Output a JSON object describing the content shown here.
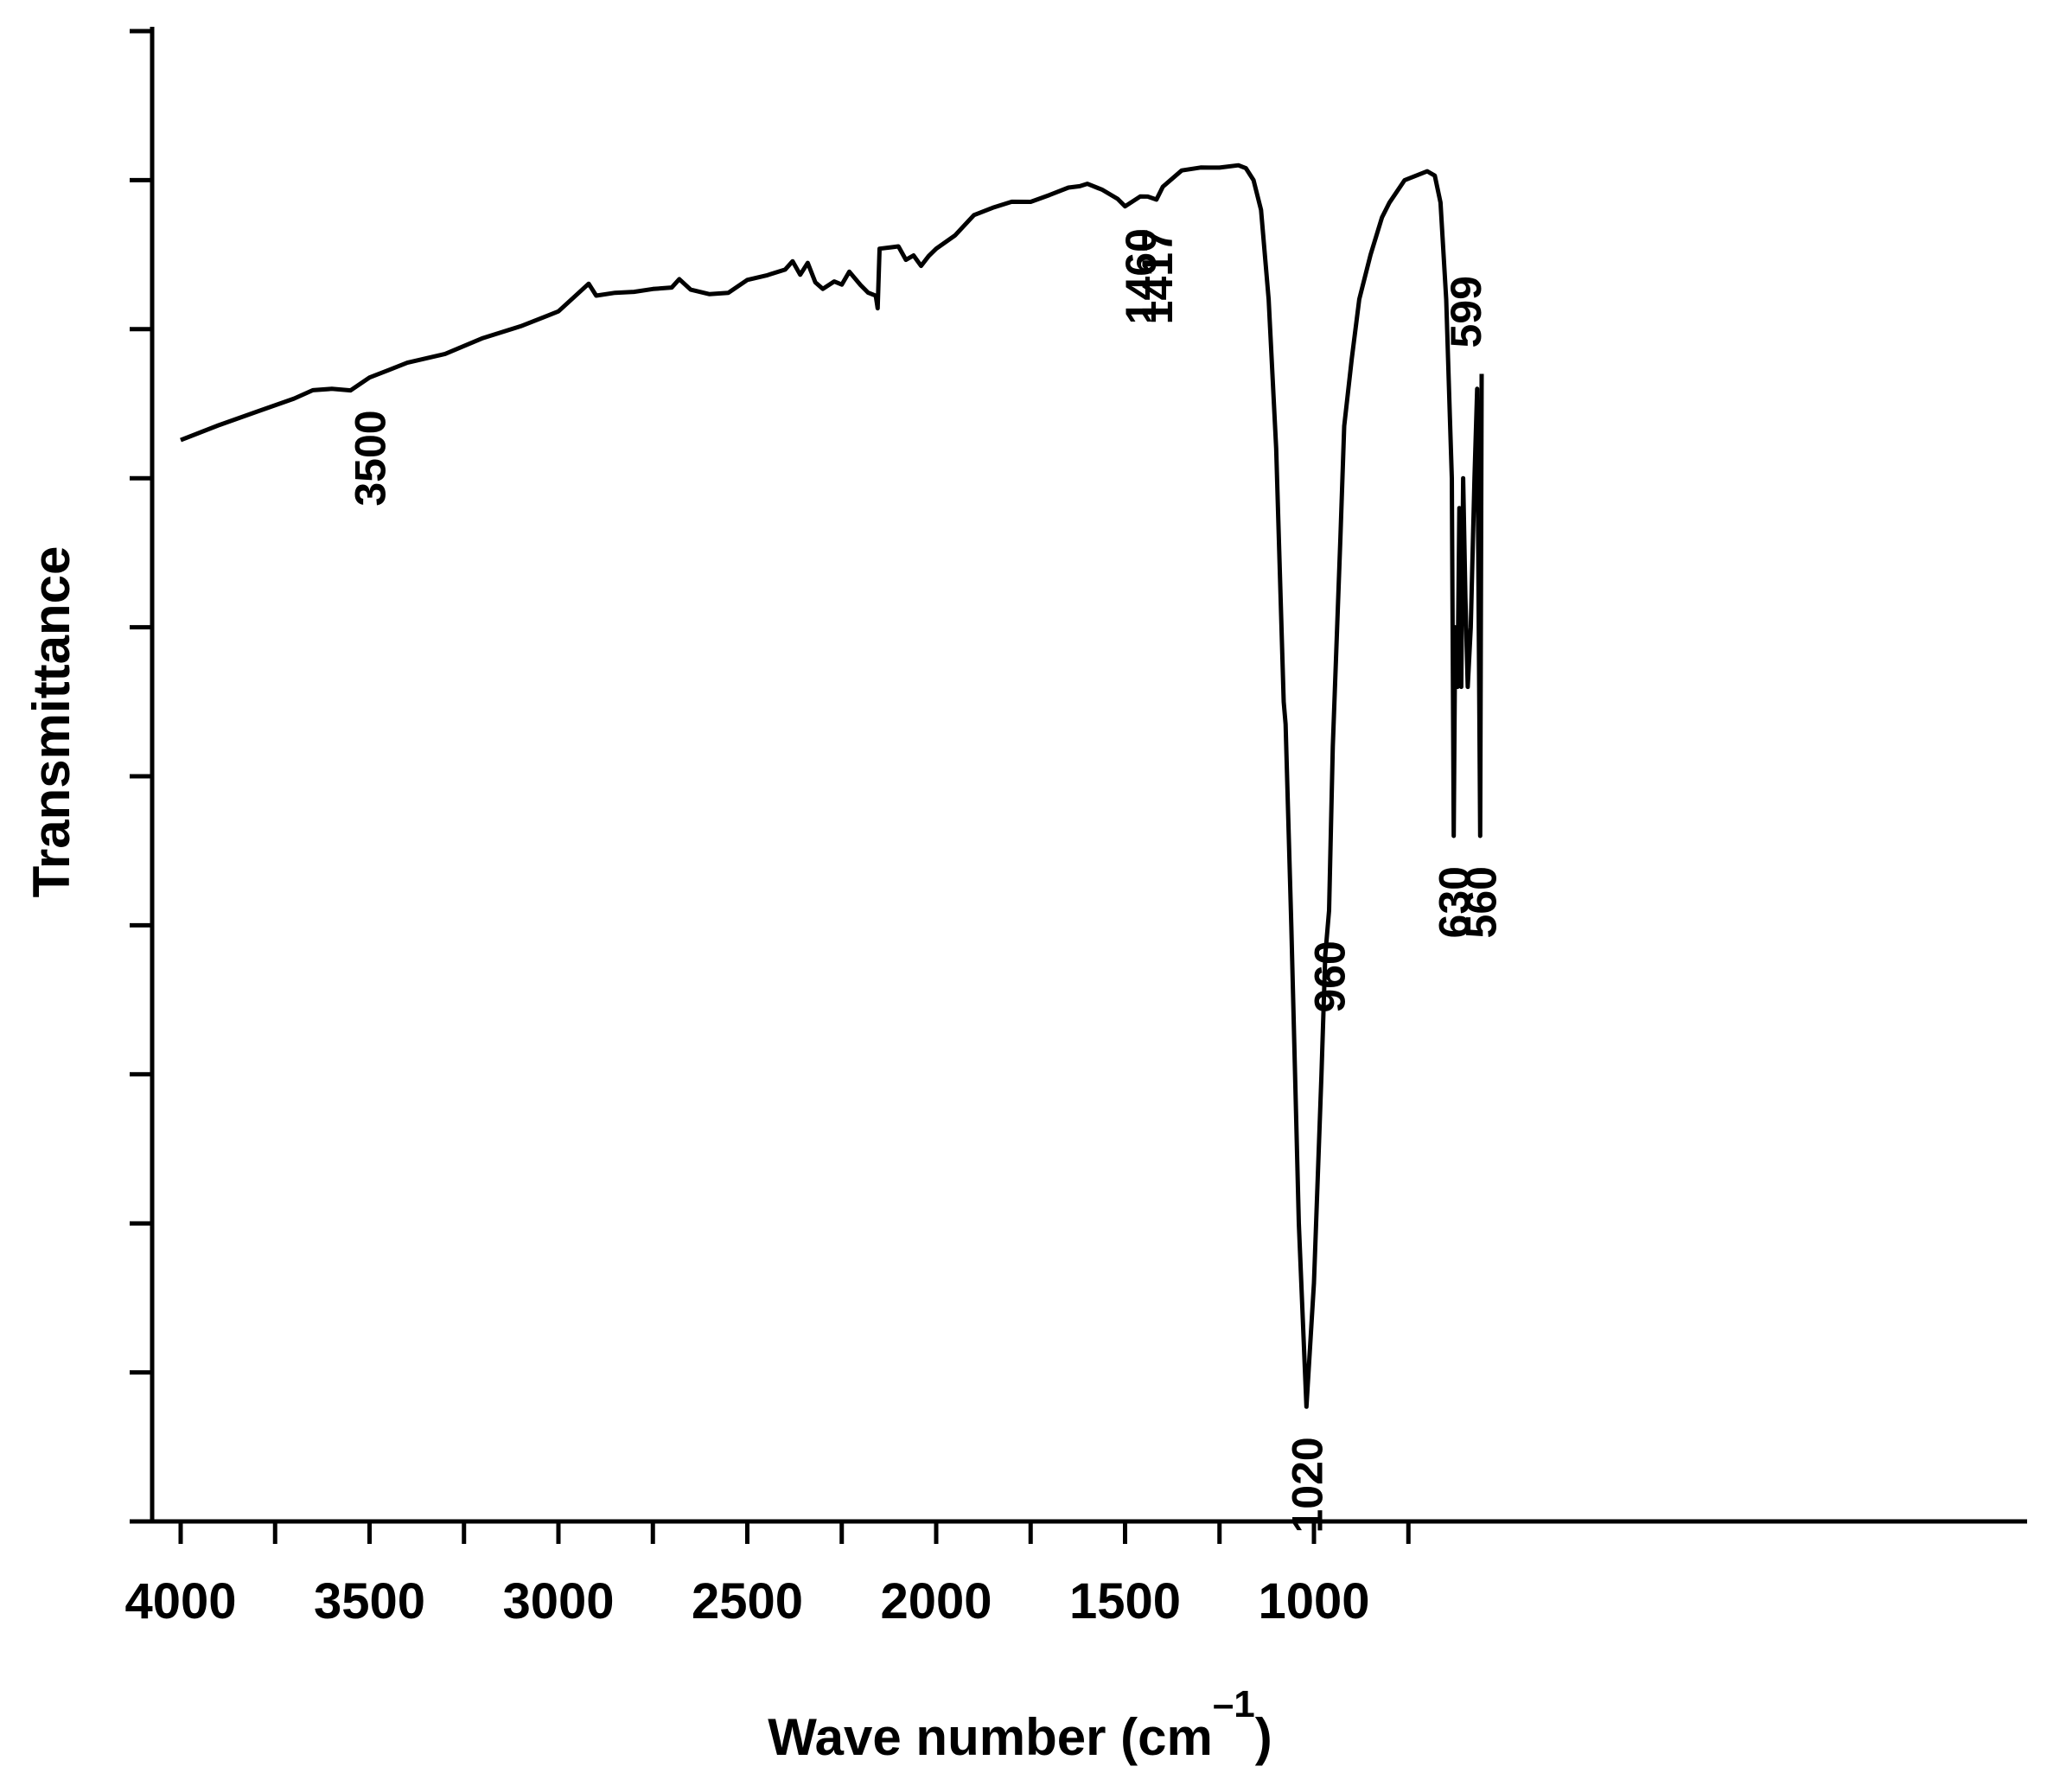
{
  "chart_data": {
    "type": "line",
    "xlabel": "Wave number (cm",
    "xlabel_sup": "–1",
    "xlabel_close": ")",
    "ylabel": "Transmittance",
    "xlim": [
      4000,
      560
    ],
    "x_reversed": true,
    "ylim": [
      0,
      100
    ],
    "y_tick_labels_shown": false,
    "grid": false,
    "legend": "none",
    "x_ticks": [
      {
        "value": 4000,
        "label": "4000"
      },
      {
        "value": 3500,
        "label": "3500"
      },
      {
        "value": 3000,
        "label": "3000"
      },
      {
        "value": 2500,
        "label": "2500"
      },
      {
        "value": 2000,
        "label": "2000"
      },
      {
        "value": 1500,
        "label": "1500"
      },
      {
        "value": 1000,
        "label": "1000"
      }
    ],
    "x_minor_ticks": [
      3750,
      3250,
      2750,
      2250,
      1750,
      1250,
      750
    ],
    "y_ticks": [
      10,
      20,
      30,
      40,
      50,
      60,
      70,
      80,
      90,
      100
    ],
    "series": [
      {
        "color": "#000000",
        "points": [
          [
            4000,
            72.4
          ],
          [
            3900,
            73.5
          ],
          [
            3800,
            74.5
          ],
          [
            3700,
            75.5
          ],
          [
            3650,
            75.8
          ],
          [
            3600,
            76.0
          ],
          [
            3550,
            76.0
          ],
          [
            3500,
            76.6
          ],
          [
            3450,
            77.2
          ],
          [
            3400,
            77.8
          ],
          [
            3300,
            78.5
          ],
          [
            3200,
            79.3
          ],
          [
            3100,
            80.2
          ],
          [
            3000,
            81.3
          ],
          [
            2950,
            82.2
          ],
          [
            2920,
            83.0
          ],
          [
            2900,
            82.3
          ],
          [
            2850,
            82.6
          ],
          [
            2800,
            82.4
          ],
          [
            2750,
            82.7
          ],
          [
            2700,
            82.9
          ],
          [
            2680,
            83.2
          ],
          [
            2650,
            82.6
          ],
          [
            2600,
            82.4
          ],
          [
            2550,
            82.6
          ],
          [
            2500,
            83.2
          ],
          [
            2450,
            83.6
          ],
          [
            2400,
            84.1
          ],
          [
            2380,
            84.4
          ],
          [
            2360,
            83.6
          ],
          [
            2340,
            84.5
          ],
          [
            2320,
            83.3
          ],
          [
            2300,
            82.6
          ],
          [
            2270,
            83.2
          ],
          [
            2250,
            83.1
          ],
          [
            2230,
            83.7
          ],
          [
            2200,
            82.9
          ],
          [
            2180,
            82.5
          ],
          [
            2160,
            82.4
          ],
          [
            2155,
            81.3
          ],
          [
            2150,
            85.4
          ],
          [
            2120,
            85.6
          ],
          [
            2100,
            85.4
          ],
          [
            2080,
            84.6
          ],
          [
            2060,
            85.0
          ],
          [
            2040,
            84.4
          ],
          [
            2020,
            84.8
          ],
          [
            2000,
            85.4
          ],
          [
            1950,
            86.4
          ],
          [
            1900,
            87.5
          ],
          [
            1850,
            88.1
          ],
          [
            1800,
            88.6
          ],
          [
            1750,
            88.7
          ],
          [
            1700,
            88.9
          ],
          [
            1650,
            89.5
          ],
          [
            1620,
            89.7
          ],
          [
            1600,
            89.6
          ],
          [
            1560,
            89.3
          ],
          [
            1520,
            88.8
          ],
          [
            1500,
            88.4
          ],
          [
            1460,
            88.8
          ],
          [
            1440,
            88.9
          ],
          [
            1417,
            88.8
          ],
          [
            1400,
            89.4
          ],
          [
            1350,
            90.6
          ],
          [
            1300,
            90.9
          ],
          [
            1250,
            91.0
          ],
          [
            1200,
            91.0
          ],
          [
            1180,
            90.8
          ],
          [
            1160,
            90.0
          ],
          [
            1140,
            88.0
          ],
          [
            1120,
            82.0
          ],
          [
            1100,
            72.0
          ],
          [
            1080,
            55.0
          ],
          [
            1075,
            53.5
          ],
          [
            1060,
            40.0
          ],
          [
            1040,
            20.0
          ],
          [
            1020,
            7.7
          ],
          [
            1000,
            16.0
          ],
          [
            980,
            30.0
          ],
          [
            970,
            38.0
          ],
          [
            960,
            41.0
          ],
          [
            950,
            52.0
          ],
          [
            930,
            66.0
          ],
          [
            920,
            73.5
          ],
          [
            900,
            78.0
          ],
          [
            880,
            82.0
          ],
          [
            850,
            85.0
          ],
          [
            820,
            87.5
          ],
          [
            800,
            88.5
          ],
          [
            760,
            90.0
          ],
          [
            700,
            90.6
          ],
          [
            680,
            90.3
          ],
          [
            665,
            88.5
          ],
          [
            650,
            82.0
          ],
          [
            640,
            74.0
          ],
          [
            635,
            70.0
          ],
          [
            630,
            46.0
          ],
          [
            626,
            60.0
          ],
          [
            620,
            56.0
          ],
          [
            615,
            68.0
          ],
          [
            610,
            56.0
          ],
          [
            605,
            70.0
          ],
          [
            599,
            62.0
          ],
          [
            593,
            56.0
          ],
          [
            585,
            60.0
          ],
          [
            575,
            70.0
          ],
          [
            568,
            76.0
          ],
          [
            560,
            46.0
          ],
          [
            556,
            77.0
          ]
        ]
      }
    ],
    "annotations": [
      {
        "label": "3500",
        "x": 3500,
        "y": 76.6,
        "side": "below"
      },
      {
        "label": "1460",
        "x": 1460,
        "y": 88.8,
        "side": "below"
      },
      {
        "label": "1417",
        "x": 1417,
        "y": 88.8,
        "side": "below"
      },
      {
        "label": "1020",
        "x": 1020,
        "y": 7.7,
        "side": "below"
      },
      {
        "label": "960",
        "x": 960,
        "y": 41.0,
        "side": "below"
      },
      {
        "label": "630",
        "x": 630,
        "y": 46.0,
        "side": "below"
      },
      {
        "label": "560",
        "x": 560,
        "y": 46.0,
        "side": "below"
      },
      {
        "label": "599",
        "x": 599,
        "y": 77.0,
        "side": "above"
      }
    ]
  }
}
